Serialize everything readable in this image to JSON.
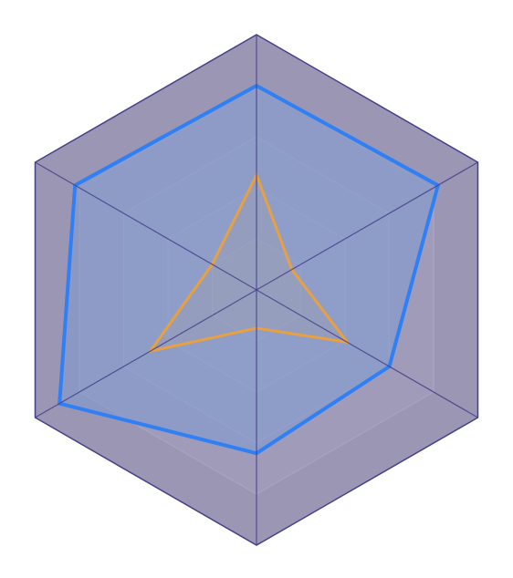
{
  "chart_data": {
    "type": "radar",
    "axes_count": 6,
    "range": [
      0,
      100
    ],
    "grid_levels": 5,
    "grid": true,
    "legend": "none",
    "series": [
      {
        "values": [
          80,
          82,
          60,
          64,
          89,
          82
        ],
        "color": "#2f80f5"
      },
      {
        "values": [
          45,
          16,
          41,
          15,
          48,
          20
        ],
        "color": "#e8a040"
      }
    ],
    "colors": {
      "background_fill": "#9b96b4",
      "inner_band_fill": "#a7a6c4",
      "axis_stroke": "#45408a",
      "series_fill": "#7f9bd2"
    }
  }
}
